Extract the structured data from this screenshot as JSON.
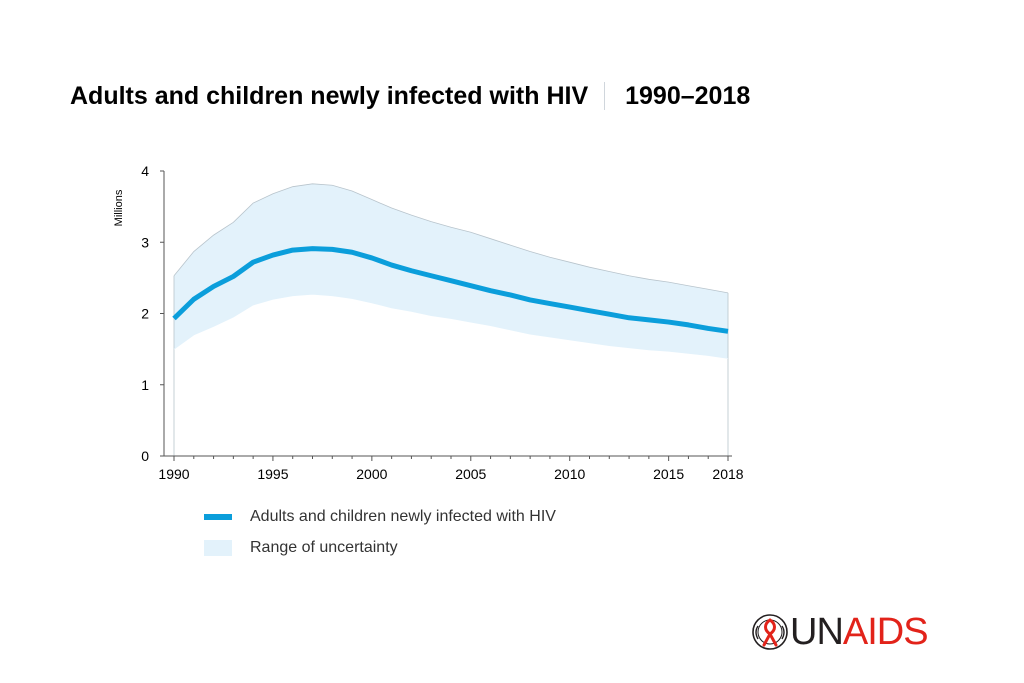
{
  "header": {
    "title": "Adults and children newly infected with HIV",
    "period": "1990–2018"
  },
  "colors": {
    "line": "#0b9edb",
    "band": "#e3f2fb",
    "band_edge": "#b8c4cc",
    "axis": "#555555",
    "brand": "#e2231a",
    "brand_dark": "#231f20"
  },
  "chart_data": {
    "type": "area",
    "title": "Adults and children newly infected with HIV",
    "ylabel": "Millions",
    "xlabel": "",
    "xlim": [
      1990,
      2018
    ],
    "ylim": [
      0,
      4
    ],
    "yticks": [
      0,
      1,
      2,
      3,
      4
    ],
    "xticks": [
      1990,
      1995,
      2000,
      2005,
      2010,
      2015,
      2018
    ],
    "x": [
      1990,
      1991,
      1992,
      1993,
      1994,
      1995,
      1996,
      1997,
      1998,
      1999,
      2000,
      2001,
      2002,
      2003,
      2004,
      2005,
      2006,
      2007,
      2008,
      2009,
      2010,
      2011,
      2012,
      2013,
      2014,
      2015,
      2016,
      2017,
      2018
    ],
    "series": [
      {
        "name": "Adults and children newly infected with HIV",
        "values": [
          1.93,
          2.2,
          2.38,
          2.52,
          2.72,
          2.82,
          2.89,
          2.91,
          2.9,
          2.86,
          2.78,
          2.68,
          2.6,
          2.53,
          2.46,
          2.39,
          2.32,
          2.26,
          2.19,
          2.14,
          2.09,
          2.04,
          1.99,
          1.94,
          1.91,
          1.88,
          1.84,
          1.79,
          1.75
        ]
      },
      {
        "name": "Range of uncertainty",
        "lower": [
          1.5,
          1.7,
          1.82,
          1.95,
          2.12,
          2.2,
          2.25,
          2.27,
          2.25,
          2.21,
          2.15,
          2.08,
          2.03,
          1.97,
          1.93,
          1.88,
          1.83,
          1.77,
          1.71,
          1.67,
          1.63,
          1.59,
          1.55,
          1.52,
          1.49,
          1.47,
          1.44,
          1.41,
          1.37
        ],
        "upper": [
          2.53,
          2.87,
          3.1,
          3.28,
          3.55,
          3.68,
          3.78,
          3.82,
          3.8,
          3.72,
          3.6,
          3.48,
          3.38,
          3.29,
          3.21,
          3.14,
          3.05,
          2.96,
          2.87,
          2.79,
          2.72,
          2.65,
          2.59,
          2.53,
          2.48,
          2.44,
          2.39,
          2.34,
          2.29
        ]
      }
    ],
    "legend": [
      "Adults and children newly infected with HIV",
      "Range of uncertainty"
    ]
  },
  "logo": {
    "text": "UNAIDS"
  }
}
